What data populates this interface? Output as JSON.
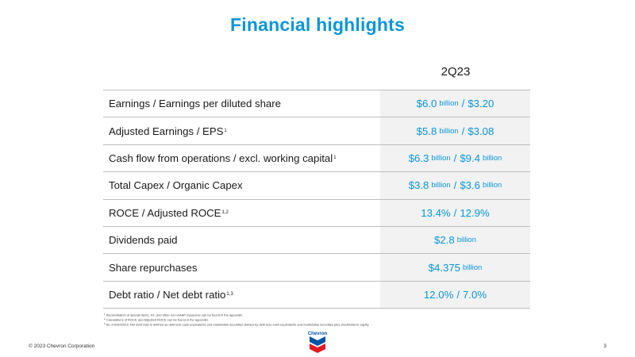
{
  "title": "Financial highlights",
  "period": "2Q23",
  "rows": [
    {
      "label": "Earnings / Earnings per diluted share",
      "sup": "",
      "v1": "$6.0",
      "u1": "billion",
      "v2": "$3.20",
      "u2": ""
    },
    {
      "label": "Adjusted Earnings / EPS",
      "sup": "1",
      "v1": "$5.8",
      "u1": "billion",
      "v2": "$3.08",
      "u2": ""
    },
    {
      "label": "Cash flow from operations / excl. working capital",
      "sup": "1",
      "v1": "$6.3",
      "u1": "billion",
      "v2": "$9.4",
      "u2": "billion"
    },
    {
      "label": "Total Capex / Organic Capex",
      "sup": "",
      "v1": "$3.8",
      "u1": "billion",
      "v2": "$3.6",
      "u2": "billion"
    },
    {
      "label": "ROCE / Adjusted ROCE",
      "sup": "1,2",
      "v1": "13.4%",
      "u1": "",
      "v2": "12.9%",
      "u2": ""
    },
    {
      "label": "Dividends paid",
      "sup": "",
      "v1": "$2.8",
      "u1": "billion",
      "v2": "",
      "u2": ""
    },
    {
      "label": "Share repurchases",
      "sup": "",
      "v1": "$4.375",
      "u1": "billion",
      "v2": "",
      "u2": ""
    },
    {
      "label": "Debt ratio / Net debt ratio",
      "sup": "1,3",
      "v1": "12.0%",
      "u1": "",
      "v2": "7.0%",
      "u2": ""
    }
  ],
  "footnotes": [
    {
      "num": "1",
      "text": "Reconciliation of special items, FX, and other non-GAAP measures can be found in the appendix."
    },
    {
      "num": "2",
      "text": "Calculations of ROCE and Adjusted ROCE can be found in the appendix."
    },
    {
      "num": "3",
      "text": "As of 6/30/2023. Net debt ratio is defined as debt less cash equivalents and marketable securities divided by debt less cash equivalents and marketable securities plus stockholders' equity."
    }
  ],
  "logo_text": "Chevron",
  "copyright": "© 2023 Chevron Corporation",
  "page_number": "3",
  "colors": {
    "accent": "#0a96d8",
    "value_cell_bg": "#f2f2f2",
    "logo_red": "#e31b23",
    "logo_blue": "#0054a4"
  }
}
